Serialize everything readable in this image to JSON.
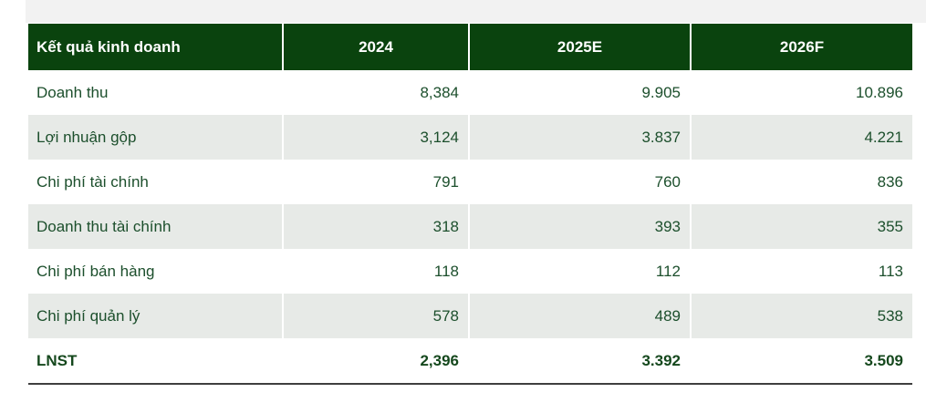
{
  "page": {
    "top_strip_color": "#F2F2F2",
    "background_color": "#FFFFFF"
  },
  "colors": {
    "header_background": "#0A430E",
    "header_text": "#FFFFFF",
    "body_text": "#1C4F2C",
    "striped_row_background": "#E7EAE7",
    "total_row_border": "#3F3F3F"
  },
  "chart_data": {
    "type": "table",
    "title": "Kết quả kinh doanh",
    "columns": [
      "Kết quả kinh doanh",
      "2024",
      "2025E",
      "2026F"
    ],
    "rows": [
      {
        "label": "Doanh thu",
        "values": [
          "8,384",
          "9.905",
          "10.896"
        ],
        "bold": false
      },
      {
        "label": "Lợi nhuận gộp",
        "values": [
          "3,124",
          "3.837",
          "4.221"
        ],
        "bold": false
      },
      {
        "label": "Chi phí tài chính",
        "values": [
          "791",
          "760",
          "836"
        ],
        "bold": false
      },
      {
        "label": "Doanh thu tài chính",
        "values": [
          "318",
          "393",
          "355"
        ],
        "bold": false
      },
      {
        "label": "Chi phí bán hàng",
        "values": [
          "118",
          "112",
          "113"
        ],
        "bold": false
      },
      {
        "label": "Chi phí quản lý",
        "values": [
          "578",
          "489",
          "538"
        ],
        "bold": false
      },
      {
        "label": "LNST",
        "values": [
          "2,396",
          "3.392",
          "3.509"
        ],
        "bold": true
      }
    ]
  }
}
